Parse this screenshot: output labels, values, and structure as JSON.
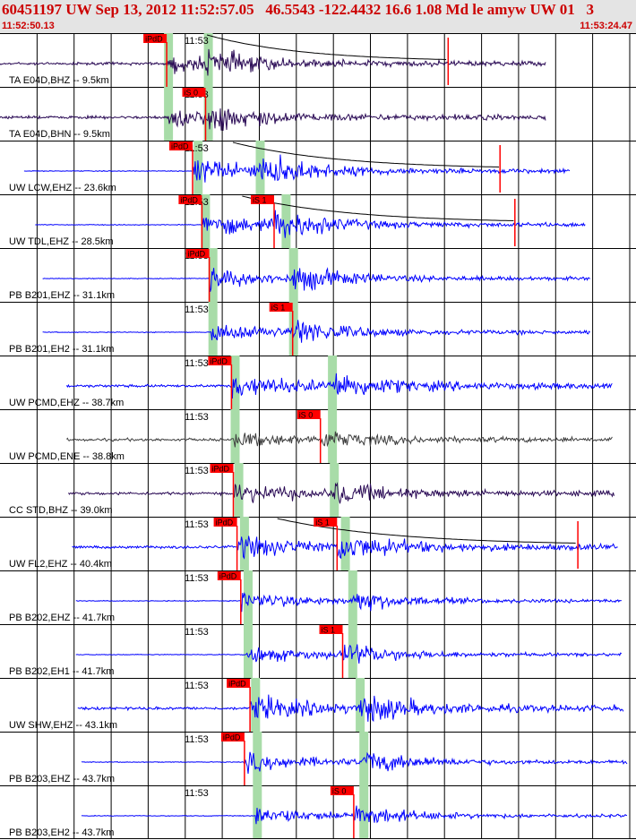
{
  "header": {
    "title": "60451197 UW Sep 13, 2012 11:52:57.05   46.5543 -122.4432 16.6 1.08 Md le amyw UW 01   3",
    "start_time": "11:52:50.13",
    "end_time": "11:53:24.47"
  },
  "colors": {
    "header_bg": "#e4e4e4",
    "header_text": "#cc0000",
    "trace_blue": "#0000ff",
    "trace_dark_purple": "#2a0a55",
    "trace_gray": "#404040",
    "pick_flag": "#ff0000",
    "pick_window": "#a8dca8",
    "coda_fit": "#cc0000"
  },
  "chart_data": {
    "type": "line",
    "xlim": [
      0,
      34.34
    ],
    "minute_label": "11:53",
    "minute_label_time": 9.87,
    "grid": "vertical lines every 2 s",
    "traces": [
      {
        "label": "TA E04D,BHZ -- 9.5km",
        "color": "dark_purple",
        "start": 0.0,
        "end": 29.5,
        "p": {
          "label": "iPdD",
          "t": 9.0
        },
        "s": null,
        "s_window": 11.2,
        "p_window": 9.0,
        "amp": 0.55,
        "coda": true
      },
      {
        "label": "TA E04D,BHN -- 9.5km",
        "color": "dark_purple",
        "start": 0.0,
        "end": 29.5,
        "p": null,
        "s": {
          "label": "iS 0",
          "t": 11.1
        },
        "s_window": 11.2,
        "p_window": 9.0,
        "amp": 0.6,
        "coda": false
      },
      {
        "label": "UW LCW,EHZ -- 23.6km",
        "color": "blue",
        "start": 1.3,
        "end": 30.8,
        "p": {
          "label": "iPdD",
          "t": 10.4
        },
        "s": null,
        "s_window": 14.0,
        "p_window": 10.6,
        "amp": 0.85,
        "coda": true
      },
      {
        "label": "UW TDL,EHZ -- 28.5km",
        "color": "blue",
        "start": 1.9,
        "end": 31.6,
        "p": {
          "label": "iPdD",
          "t": 10.9
        },
        "s": {
          "label": "iS 1",
          "t": 14.8
        },
        "s_window": 15.4,
        "p_window": 11.0,
        "amp": 0.8,
        "coda": true
      },
      {
        "label": "PB B201,EHZ -- 31.1km",
        "color": "blue",
        "start": 2.3,
        "end": 31.9,
        "p": {
          "label": "iPdD",
          "t": 11.3
        },
        "s": null,
        "s_window": 15.8,
        "p_window": 11.4,
        "amp": 0.7,
        "coda": false
      },
      {
        "label": "PB B201,EH2 -- 31.1km",
        "color": "blue",
        "start": 2.3,
        "end": 31.9,
        "p": null,
        "s": {
          "label": "iS 1",
          "t": 15.8
        },
        "s_window": 15.8,
        "p_window": 11.4,
        "amp": 0.7,
        "coda": false
      },
      {
        "label": "UW PCMD,EHZ -- 38.7km",
        "color": "blue",
        "start": 3.6,
        "end": 33.1,
        "p": {
          "label": "iPdD",
          "t": 12.5
        },
        "s": null,
        "s_window": 17.9,
        "p_window": 12.6,
        "amp": 0.75,
        "coda": false
      },
      {
        "label": "UW PCMD,ENE -- 38.8km",
        "color": "gray",
        "start": 3.6,
        "end": 33.1,
        "p": null,
        "s": {
          "label": "iS 0",
          "t": 17.3
        },
        "s_window": 17.9,
        "p_window": 12.6,
        "amp": 0.45,
        "coda": false
      },
      {
        "label": "CC STD,BHZ -- 39.0km",
        "color": "dark_purple",
        "start": 3.7,
        "end": 33.2,
        "p": {
          "label": "iPdD",
          "t": 12.6
        },
        "s": null,
        "s_window": 18.0,
        "p_window": 12.8,
        "amp": 0.6,
        "coda": false
      },
      {
        "label": "UW FL2,EHZ -- 40.4km",
        "color": "blue",
        "start": 3.9,
        "end": 33.4,
        "p": {
          "label": "iPdD",
          "t": 12.8
        },
        "s": {
          "label": "iS 1",
          "t": 18.2
        },
        "s_window": 18.6,
        "p_window": 13.1,
        "amp": 0.75,
        "coda": true
      },
      {
        "label": "PB B202,EHZ -- 41.7km",
        "color": "blue",
        "start": 4.1,
        "end": 33.6,
        "p": {
          "label": "iPdD",
          "t": 13.0
        },
        "s": null,
        "s_window": 19.0,
        "p_window": 13.3,
        "amp": 0.6,
        "coda": false
      },
      {
        "label": "PB B202,EH1 -- 41.7km",
        "color": "blue",
        "start": 4.1,
        "end": 33.6,
        "p": null,
        "s": {
          "label": "iS 1",
          "t": 18.5
        },
        "s_window": 19.0,
        "p_window": 13.3,
        "amp": 0.6,
        "coda": false
      },
      {
        "label": "UW SHW,EHZ -- 43.1km",
        "color": "blue",
        "start": 4.2,
        "end": 33.7,
        "p": {
          "label": "iPdD",
          "t": 13.5
        },
        "s": null,
        "s_window": 19.4,
        "p_window": 13.7,
        "amp": 0.8,
        "coda": false
      },
      {
        "label": "PB B203,EHZ -- 43.7km",
        "color": "blue",
        "start": 4.4,
        "end": 33.9,
        "p": {
          "label": "iPdD",
          "t": 13.2
        },
        "s": null,
        "s_window": 19.6,
        "p_window": 13.8,
        "amp": 0.65,
        "coda": false
      },
      {
        "label": "PB B203,EH2 -- 43.7km",
        "color": "blue",
        "start": 4.4,
        "end": 33.9,
        "p": null,
        "s": {
          "label": "iS 0",
          "t": 19.1
        },
        "s_window": 19.6,
        "p_window": 13.8,
        "amp": 0.6,
        "coda": false
      }
    ]
  }
}
